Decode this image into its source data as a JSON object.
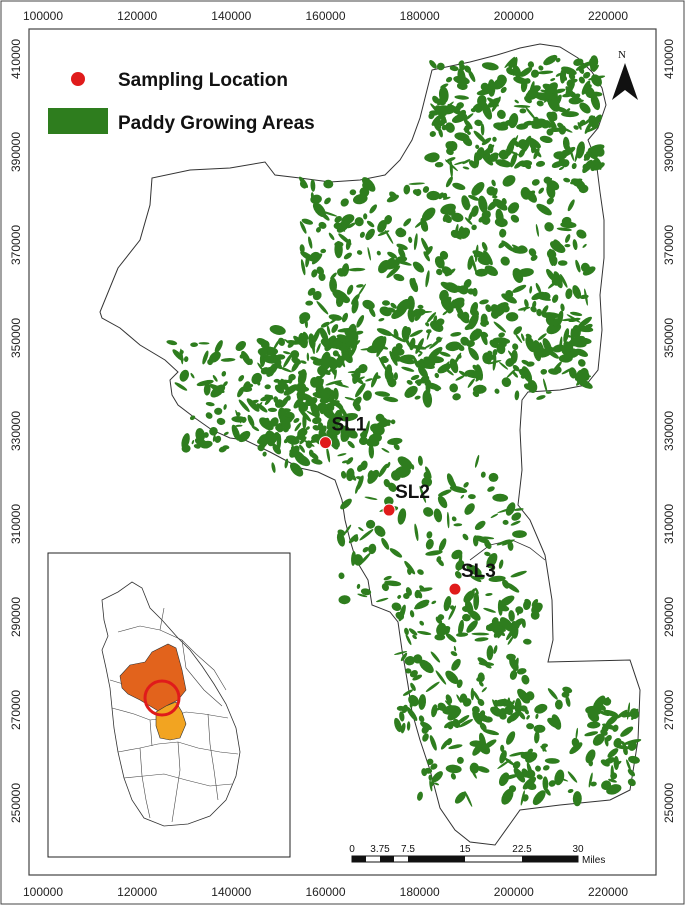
{
  "map": {
    "x_ticks": [
      "100000",
      "120000",
      "140000",
      "160000",
      "180000",
      "200000",
      "220000"
    ],
    "y_ticks": [
      "410000",
      "390000",
      "370000",
      "350000",
      "330000",
      "310000",
      "290000",
      "270000",
      "250000"
    ],
    "north_label": "N",
    "colors": {
      "paddy": "#2e7d1e",
      "district_fill": "#ffffff",
      "boundary": "#333333",
      "sampling_point": "#e01b1b",
      "inset_highlight_dark": "#e2631c",
      "inset_highlight_light": "#f2a421",
      "inset_circle": "#e01b1b"
    }
  },
  "legend": {
    "sampling_location": "Sampling Location",
    "paddy_areas": "Paddy Growing Areas"
  },
  "sites": [
    {
      "label": "SL1",
      "easting": 160000,
      "northing": 327500
    },
    {
      "label": "SL2",
      "easting": 173500,
      "northing": 313000
    },
    {
      "label": "SL3",
      "easting": 187500,
      "northing": 296000
    }
  ],
  "scale_bar": {
    "labels": [
      "0",
      "3.75",
      "7.5",
      "15",
      "22.5",
      "30"
    ],
    "unit": "Miles"
  },
  "inset": {
    "feature": "Sri Lanka district map with study area highlighted"
  }
}
